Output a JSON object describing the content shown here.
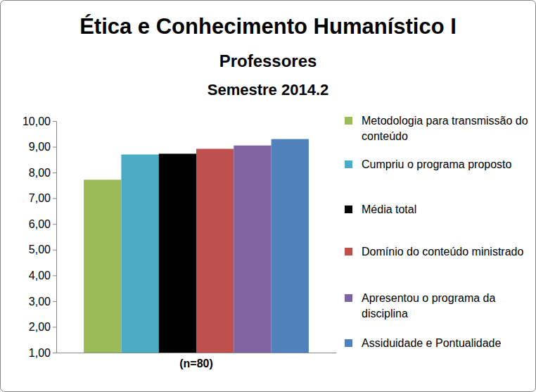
{
  "chart_data": {
    "type": "bar",
    "title": "Ética e Conhecimento Humanístico I",
    "subtitle": [
      "Professores",
      "Semestre 2014.2"
    ],
    "categories": [
      "(n=80)"
    ],
    "series": [
      {
        "name": "Metodologia para transmissão do conteúdo",
        "color": "#9bbb59",
        "values": [
          7.72
        ]
      },
      {
        "name": "Cumpriu o programa proposto",
        "color": "#4bacc6",
        "values": [
          8.7
        ]
      },
      {
        "name": "Média total",
        "color": "#000000",
        "values": [
          8.73
        ]
      },
      {
        "name": "Domínio do conteúdo ministrado",
        "color": "#c0504d",
        "values": [
          8.92
        ]
      },
      {
        "name": "Apresentou o programa da disciplina",
        "color": "#8064a2",
        "values": [
          9.05
        ]
      },
      {
        "name": "Assiduidade e Pontualidade",
        "color": "#4f81bd",
        "values": [
          9.3
        ]
      }
    ],
    "ylim": [
      1,
      10
    ],
    "yticks": [
      {
        "value": 1,
        "label": "1,00"
      },
      {
        "value": 2,
        "label": "2,00"
      },
      {
        "value": 3,
        "label": "3,00"
      },
      {
        "value": 4,
        "label": "4,00"
      },
      {
        "value": 5,
        "label": "5,00"
      },
      {
        "value": 6,
        "label": "6,00"
      },
      {
        "value": 7,
        "label": "7,00"
      },
      {
        "value": 8,
        "label": "8,00"
      },
      {
        "value": 9,
        "label": "9,00"
      },
      {
        "value": 10,
        "label": "10,00"
      }
    ],
    "grid": false,
    "legend": "right"
  }
}
